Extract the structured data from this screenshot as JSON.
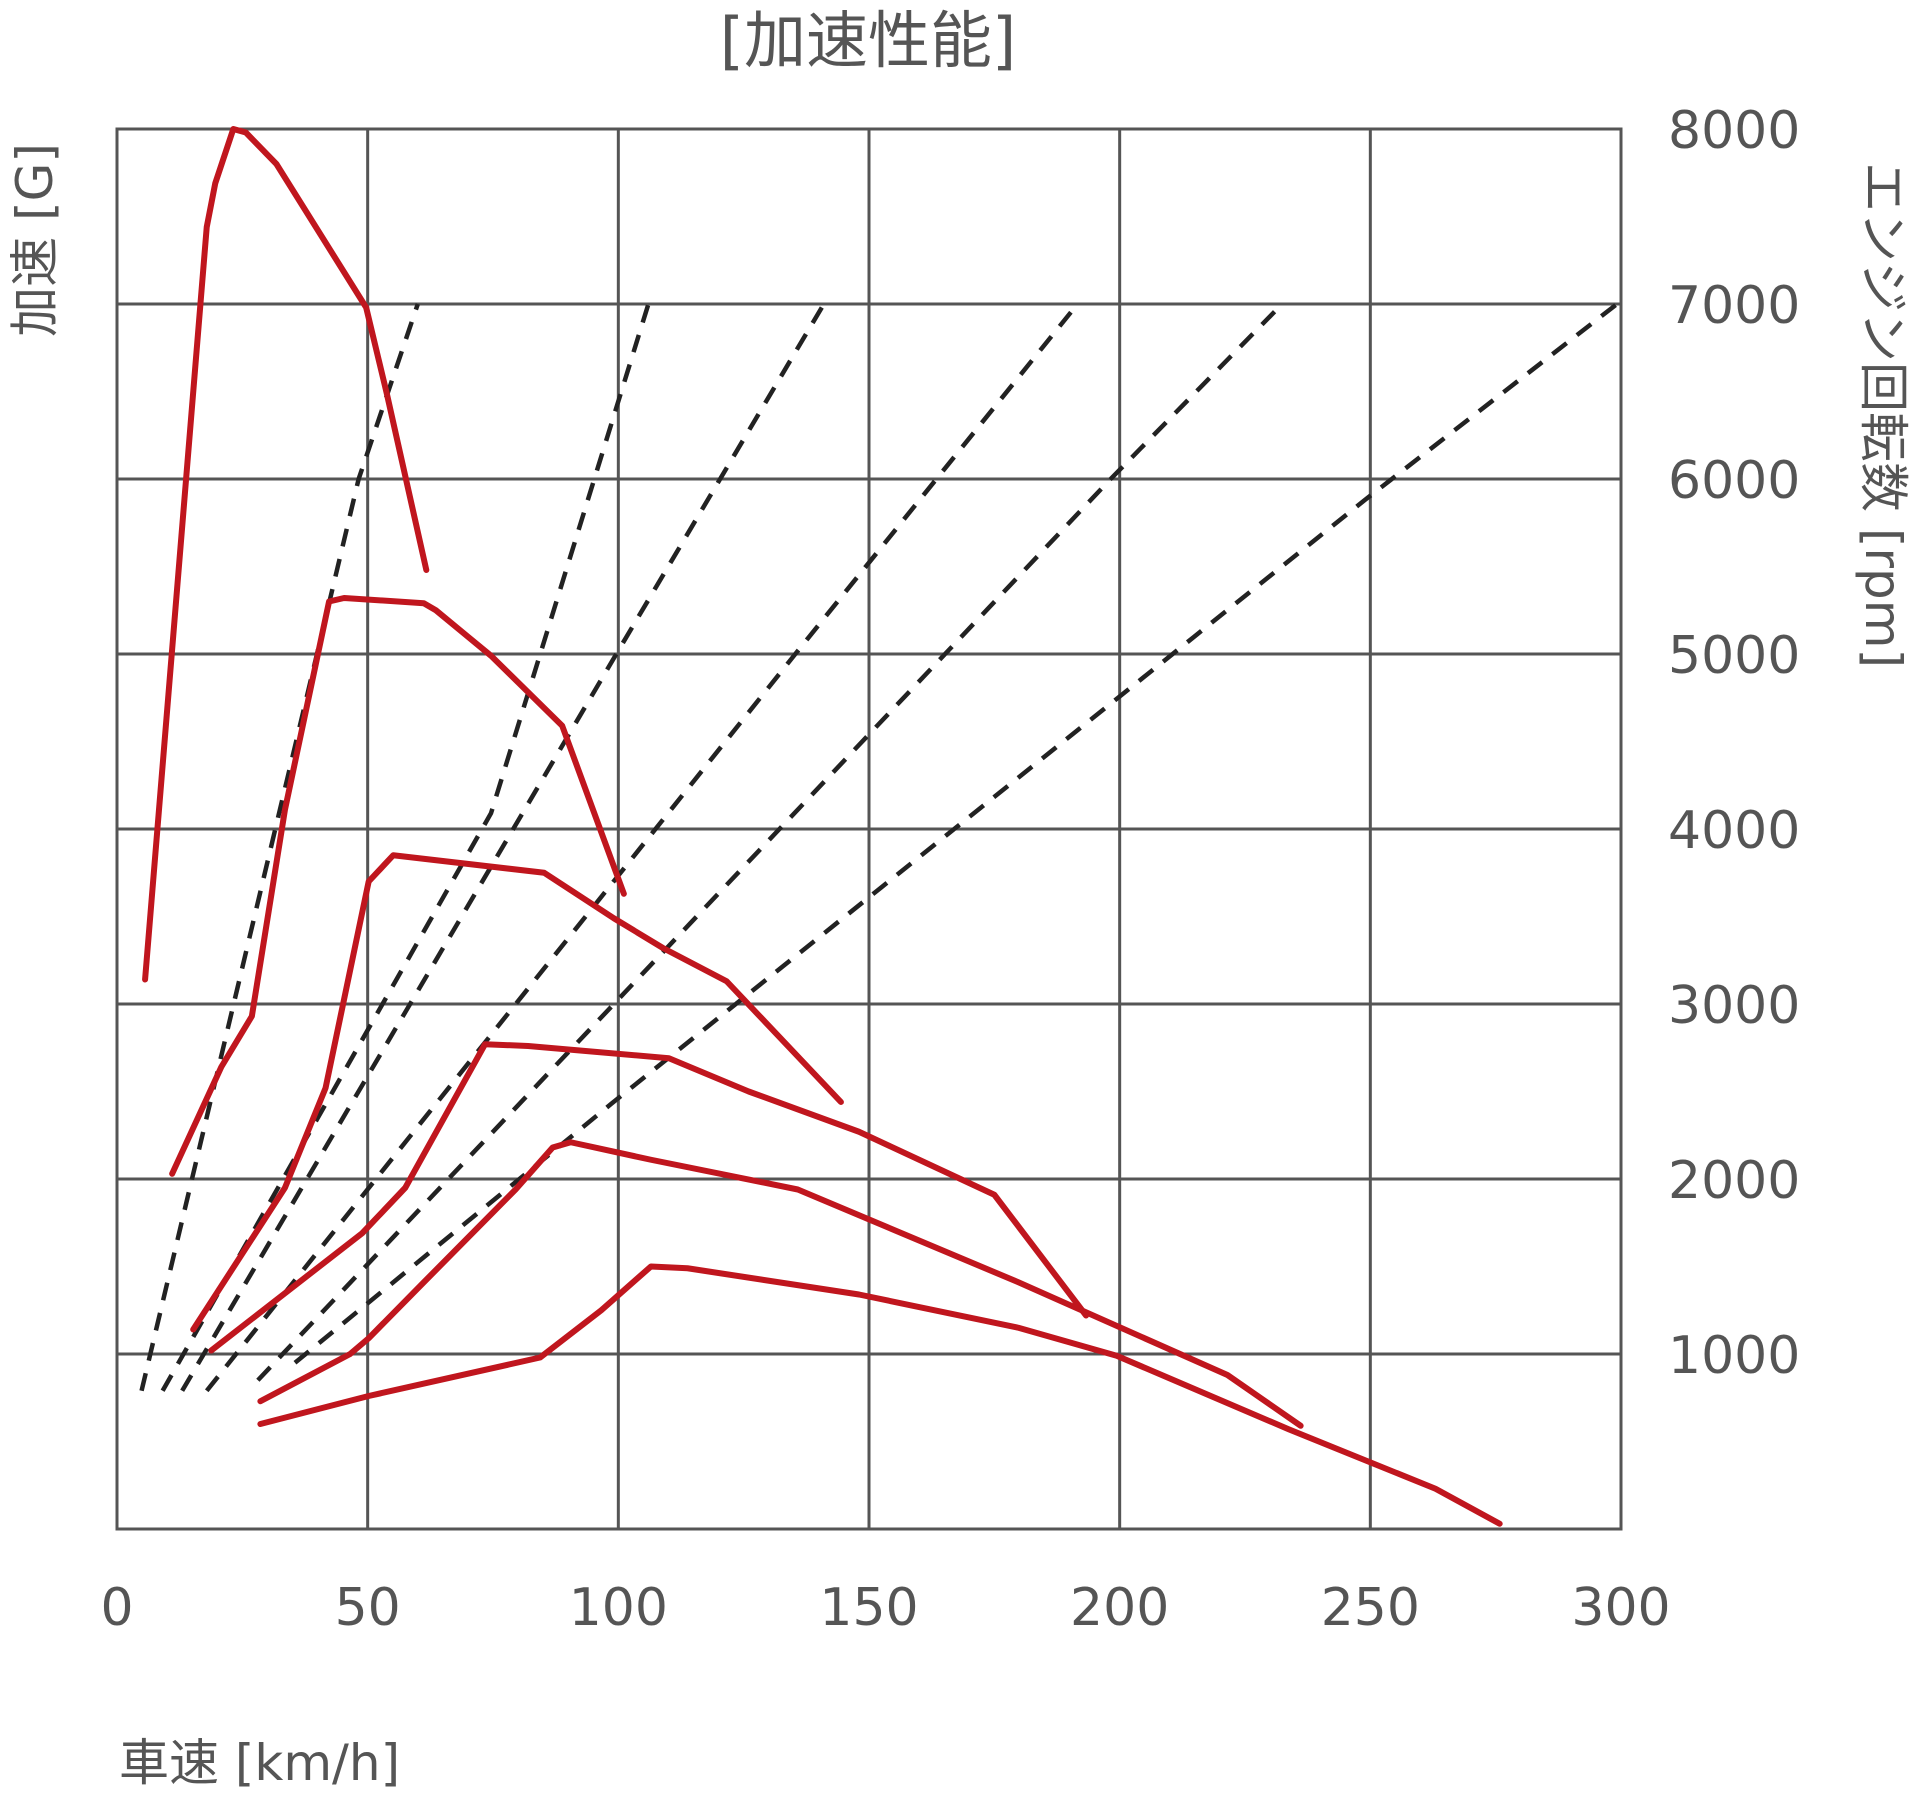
{
  "chart_data": {
    "type": "line",
    "title": "[加速性能]",
    "xlabel": "車速 [km/h]",
    "ylabel_left": "加速 [G]",
    "ylabel_right": "エンジン回転数 [rpm]",
    "xlim": [
      0,
      300
    ],
    "x_ticks": [
      "0",
      "50",
      "100",
      "150",
      "200",
      "250",
      "300"
    ],
    "ylim_right": [
      0,
      8000
    ],
    "y_right_ticks": [
      "1000",
      "2000",
      "3000",
      "4000",
      "5000",
      "6000",
      "7000",
      "8000"
    ],
    "ylim_left": [
      0,
      8
    ],
    "left_axis_tick_labels": "none",
    "grid": true,
    "colors": {
      "acceleration": "#c0161e",
      "rpm": "#222222",
      "grid": "#555555",
      "text": "#555555"
    },
    "acceleration_series": [
      {
        "x": [
          5.6,
          17.9,
          19.6,
          23.2,
          25.7,
          31.8,
          49.7,
          53.8,
          61.7
        ],
        "y": [
          3.14,
          7.44,
          7.69,
          8.0,
          7.98,
          7.8,
          6.98,
          6.49,
          5.48
        ]
      },
      {
        "x": [
          11.0,
          20.8,
          26.9,
          33.5,
          42.3,
          45.3,
          61.2,
          63.6,
          74.6,
          88.8,
          101.1
        ],
        "y": [
          2.03,
          2.64,
          2.93,
          4.11,
          5.3,
          5.32,
          5.29,
          5.25,
          4.99,
          4.59,
          3.63
        ]
      },
      {
        "x": [
          15.2,
          33.5,
          41.6,
          50.2,
          55.1,
          85.2,
          99.1,
          108.9,
          121.6,
          144.4
        ],
        "y": [
          1.14,
          1.95,
          2.52,
          3.7,
          3.85,
          3.75,
          3.49,
          3.32,
          3.13,
          2.44
        ]
      },
      {
        "x": [
          18.8,
          48.9,
          57.5,
          73.4,
          82.0,
          110.1,
          126.0,
          148.0,
          175.0,
          193.3
        ],
        "y": [
          1.02,
          1.69,
          1.95,
          2.77,
          2.76,
          2.69,
          2.5,
          2.27,
          1.91,
          1.22
        ]
      },
      {
        "x": [
          28.6,
          46.5,
          50.2,
          61.2,
          79.5,
          86.9,
          90.5,
          106.5,
          135.8,
          179.8,
          221.5,
          236.1
        ],
        "y": [
          0.73,
          1.0,
          1.09,
          1.41,
          1.94,
          2.18,
          2.21,
          2.11,
          1.94,
          1.41,
          0.88,
          0.59
        ]
      },
      {
        "x": [
          28.6,
          50.2,
          84.4,
          96.6,
          106.5,
          113.8,
          148.0,
          179.8,
          199.4,
          233.7,
          263.0,
          275.8
        ],
        "y": [
          0.6,
          0.76,
          0.98,
          1.25,
          1.5,
          1.49,
          1.34,
          1.15,
          0.99,
          0.57,
          0.23,
          0.03
        ]
      }
    ],
    "rpm_series": [
      {
        "x": [
          4.9,
          48.2,
          60.0
        ],
        "y": [
          790,
          6000,
          7000
        ]
      },
      {
        "x": [
          9.1,
          74.6,
          106.0
        ],
        "y": [
          790,
          4090,
          7000
        ]
      },
      {
        "x": [
          13.0,
          99.6,
          141.0
        ],
        "y": [
          790,
          5000,
          7000
        ]
      },
      {
        "x": [
          17.9,
          135.3,
          191.6
        ],
        "y": [
          790,
          5000,
          7000
        ]
      },
      {
        "x": [
          28.1,
          198.2,
          232.4
        ],
        "y": [
          850,
          6000,
          7000
        ]
      },
      {
        "x": [
          35.5,
          98.6,
          248.9,
          299.2
        ],
        "y": [
          950,
          2430,
          5880,
          7000
        ]
      }
    ]
  }
}
